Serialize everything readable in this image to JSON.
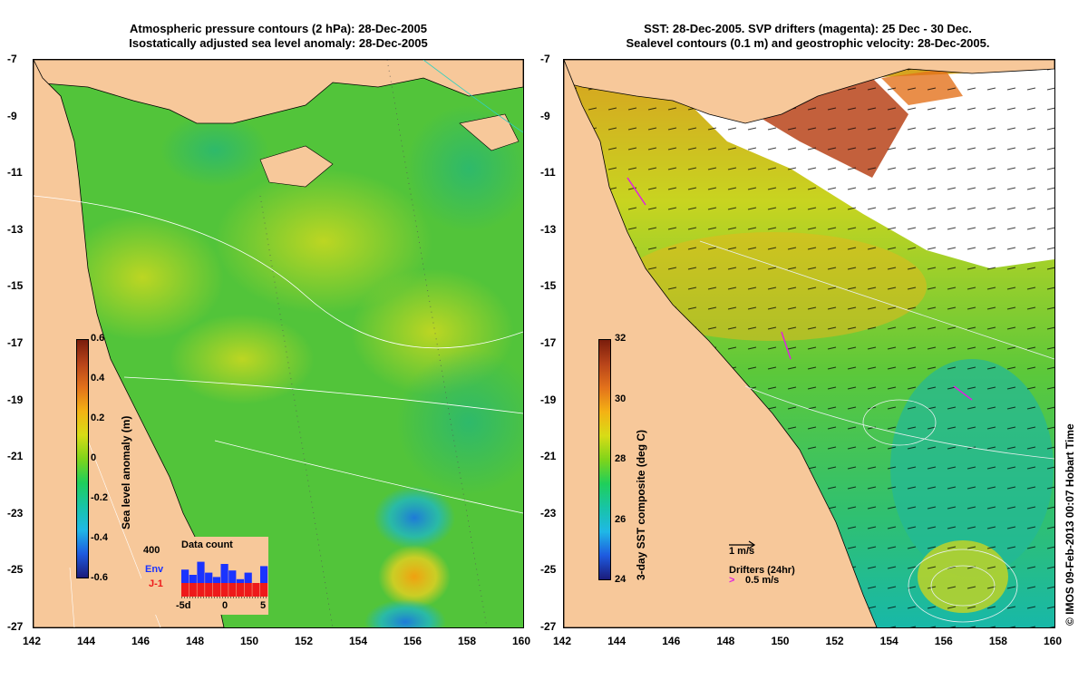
{
  "left_panel": {
    "title_line1": "Atmospheric pressure contours (2 hPa): 28-Dec-2005",
    "title_line2": "Isostatically adjusted sea level anomaly: 28-Dec-2005",
    "colorbar_label": "Sea level anomaly (m)",
    "colorbar_ticks": [
      "0.6",
      "0.4",
      "0.2",
      "0",
      "-0.2",
      "-0.4",
      "-0.6"
    ],
    "colorbar_colors": [
      "#1b1b7a",
      "#1e5be0",
      "#1fb8e6",
      "#18c4a6",
      "#1fcf5a",
      "#7fd41a",
      "#d8dc16",
      "#f4b214",
      "#e3721b",
      "#b8441a",
      "#7a1d0c"
    ],
    "inset": {
      "title": "Data count",
      "y_label": "400",
      "series1": "Env",
      "series2": "J-1",
      "x_ticks": [
        "-5d",
        "0",
        "5"
      ],
      "series1_color": "#1a33ff",
      "series2_color": "#ee1a1a"
    }
  },
  "right_panel": {
    "title_line1": "SST: 28-Dec-2005. SVP drifters (magenta): 25 Dec - 30 Dec.",
    "title_line2": "Sealevel contours (0.1 m) and geostrophic velocity: 28-Dec-2005.",
    "colorbar_label": "3-day SST composite (deg C)",
    "colorbar_ticks": [
      "32",
      "30",
      "28",
      "26",
      "24"
    ],
    "colorbar_colors": [
      "#1b1b7a",
      "#1e5be0",
      "#1fb8e6",
      "#18c4a6",
      "#1fcf5a",
      "#7fd41a",
      "#d8dc16",
      "#f4b214",
      "#e3721b",
      "#b8441a",
      "#7a1d0c"
    ],
    "velocity_scale": "1 m/s",
    "drifters_label": "Drifters (24hr)",
    "drifter_scale": "0.5 m/s",
    "drifter_symbol": ">"
  },
  "axes": {
    "lat_ticks": [
      "-7",
      "-9",
      "-11",
      "-13",
      "-15",
      "-17",
      "-19",
      "-21",
      "-23",
      "-25",
      "-27"
    ],
    "lon_ticks": [
      "142",
      "144",
      "146",
      "148",
      "150",
      "152",
      "154",
      "156",
      "158",
      "160"
    ]
  },
  "copyright": "© IMOS 09-Feb-2013 00:07 Hobart Time",
  "colors": {
    "land": "#f7c89a",
    "ocean_green": "#5fc83a",
    "magenta": "#e020e0"
  }
}
